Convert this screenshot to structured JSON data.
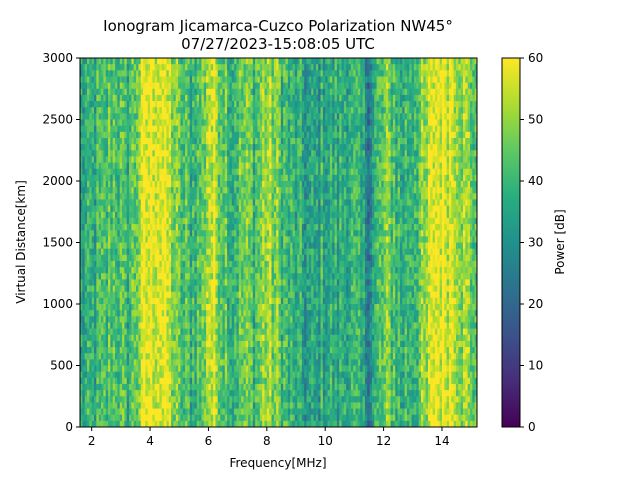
{
  "chart_data": {
    "type": "heatmap",
    "title": "Ionogram Jicamarca-Cuzco Polarization NW45°",
    "subtitle": "07/27/2023-15:08:05 UTC",
    "xlabel": "Frequency[MHz]",
    "ylabel": "Virtual Distance[km]",
    "xlim": [
      1.6,
      15.2
    ],
    "ylim": [
      0,
      3000
    ],
    "x_ticks": [
      2,
      4,
      6,
      8,
      10,
      12,
      14
    ],
    "y_ticks": [
      0,
      500,
      1000,
      1500,
      2000,
      2500,
      3000
    ],
    "grid": false,
    "colorbar": {
      "label": "Power [dB]",
      "colormap": "viridis",
      "range": [
        0,
        60
      ],
      "ticks": [
        0,
        10,
        20,
        30,
        40,
        50,
        60
      ]
    },
    "frequency_profile": {
      "description_values_MHz_to_dB": true,
      "freqs": [
        1.6,
        2.0,
        2.4,
        2.8,
        3.2,
        3.6,
        3.9,
        4.3,
        4.7,
        5.0,
        5.4,
        5.8,
        6.0,
        6.4,
        6.8,
        7.2,
        7.6,
        8.0,
        8.4,
        8.8,
        9.2,
        9.6,
        10.0,
        10.4,
        10.8,
        11.2,
        11.5,
        11.8,
        12.2,
        12.6,
        13.0,
        13.4,
        13.7,
        14.0,
        14.4,
        14.8,
        15.2
      ],
      "power": [
        34,
        36,
        40,
        45,
        38,
        50,
        58,
        60,
        52,
        42,
        40,
        44,
        56,
        50,
        40,
        46,
        42,
        52,
        45,
        38,
        34,
        32,
        38,
        36,
        40,
        34,
        28,
        40,
        46,
        38,
        42,
        46,
        58,
        60,
        58,
        50,
        44
      ]
    }
  }
}
